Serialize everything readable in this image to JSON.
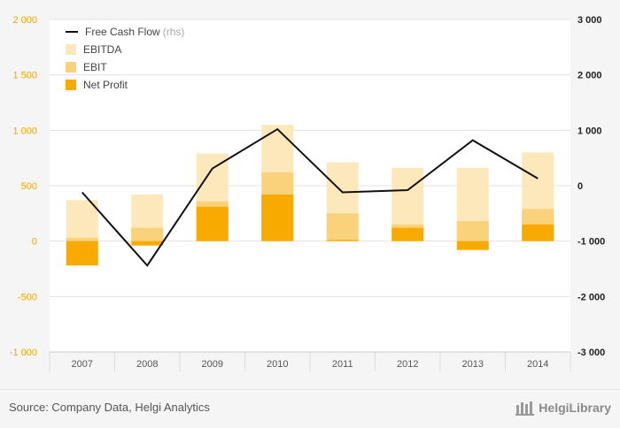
{
  "chart_data": {
    "type": "bar",
    "categories": [
      "2007",
      "2008",
      "2009",
      "2010",
      "2011",
      "2012",
      "2013",
      "2014"
    ],
    "series": [
      {
        "name": "EBITDA",
        "axis": "left",
        "values": [
          370,
          420,
          790,
          1050,
          710,
          660,
          660,
          800
        ],
        "color": "#fde8bb"
      },
      {
        "name": "EBIT",
        "axis": "left",
        "values": [
          30,
          120,
          360,
          620,
          250,
          150,
          180,
          290
        ],
        "color": "#fbd27c"
      },
      {
        "name": "Net Profit",
        "axis": "left",
        "values": [
          -220,
          -40,
          310,
          420,
          10,
          120,
          -80,
          150
        ],
        "color": "#f9aa00"
      },
      {
        "name": "Free Cash Flow",
        "name_suffix": "(rhs)",
        "axis": "right",
        "type": "line",
        "values": [
          -120,
          -1440,
          310,
          1020,
          -120,
          -80,
          820,
          130
        ],
        "color": "#111111"
      }
    ],
    "left_axis": {
      "ylim": [
        -1000,
        2000
      ],
      "ticks": [
        -1000,
        -500,
        0,
        500,
        1000,
        1500,
        2000
      ],
      "tick_labels": [
        "-1 000",
        "-500",
        "0",
        "500",
        "1 000",
        "1 500",
        "2 000"
      ],
      "color": "#f0a500"
    },
    "right_axis": {
      "ylim": [
        -3000,
        3000
      ],
      "ticks": [
        -3000,
        -2000,
        -1000,
        0,
        1000,
        2000,
        3000
      ],
      "tick_labels": [
        "-3 000",
        "-2 000",
        "-1 000",
        "0",
        "1 000",
        "2 000",
        "3 000"
      ],
      "color": "#222222"
    },
    "legend_position": "top-left",
    "grid": true
  },
  "footer": {
    "source": "Source: Company Data, Helgi Analytics",
    "brand": "HelgiLibrary"
  }
}
